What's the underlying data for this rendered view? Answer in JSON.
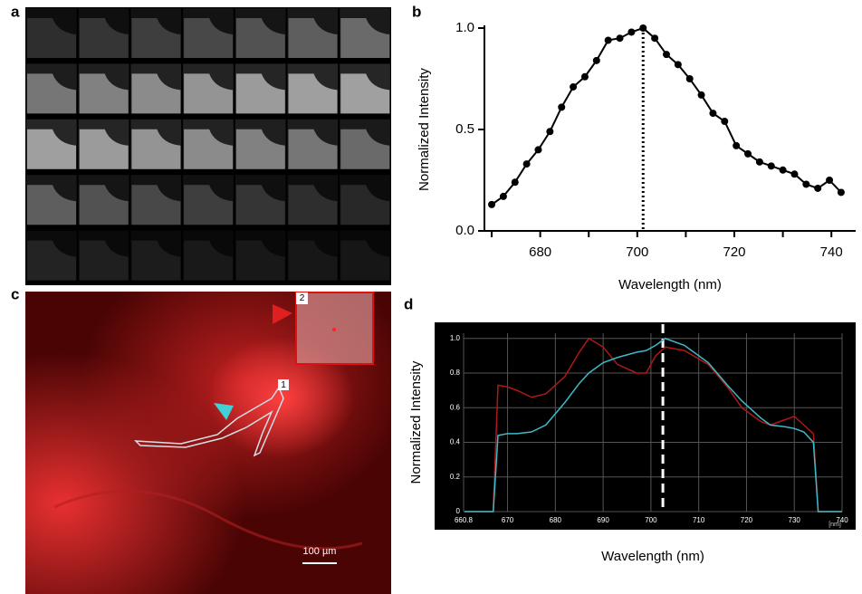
{
  "panel_labels": [
    "a",
    "b",
    "c",
    "d"
  ],
  "image_c": {
    "roi_labels": [
      "1",
      "2"
    ],
    "scale_bar": "100 µm"
  },
  "chart_data": [
    {
      "type": "line",
      "x_label": "Wavelength (nm)",
      "y_label": "Normalized Intensity",
      "x": [
        670,
        672.4,
        674.8,
        677.2,
        679.6,
        682,
        684.4,
        686.8,
        689.2,
        691.6,
        694,
        696.4,
        698.8,
        701.2,
        703.6,
        706,
        708.4,
        710.8,
        713.2,
        715.6,
        718,
        720.4,
        722.8,
        725.2,
        727.6,
        730,
        732.4,
        734.8,
        737.2,
        739.6,
        742
      ],
      "series": [
        {
          "color": "#000000",
          "values": [
            0.13,
            0.17,
            0.24,
            0.33,
            0.4,
            0.49,
            0.61,
            0.71,
            0.76,
            0.84,
            0.94,
            0.95,
            0.98,
            1.0,
            0.95,
            0.87,
            0.82,
            0.75,
            0.67,
            0.58,
            0.54,
            0.42,
            0.38,
            0.34,
            0.32,
            0.3,
            0.28,
            0.23,
            0.21,
            0.25,
            0.19
          ]
        }
      ],
      "xlim": [
        668.5,
        745
      ],
      "ylim": [
        0,
        1.0
      ],
      "xticks": [
        680,
        700,
        720,
        740
      ],
      "xminorticks": [
        670,
        690,
        710,
        730
      ],
      "yticks": [
        {
          "value": 0,
          "label": "0.0"
        },
        0.5,
        {
          "value": 1,
          "label": "1.0"
        }
      ],
      "peak_line_x": 701.2
    },
    {
      "type": "line",
      "x_label": "Wavelength (nm)",
      "y_label": "Normalized Intensity",
      "x_unit": "[nm]",
      "x": [
        661,
        667,
        668,
        670,
        672,
        675,
        678,
        682,
        685,
        687,
        690,
        693,
        697,
        699,
        701,
        703,
        707,
        712,
        716,
        719,
        723,
        725,
        728,
        730,
        732,
        734,
        735,
        740
      ],
      "series": [
        {
          "color": "#b01818",
          "values": [
            0,
            0,
            0.73,
            0.72,
            0.7,
            0.66,
            0.68,
            0.78,
            0.92,
            1.0,
            0.95,
            0.85,
            0.8,
            0.8,
            0.9,
            0.95,
            0.93,
            0.85,
            0.72,
            0.6,
            0.52,
            0.5,
            0.53,
            0.55,
            0.5,
            0.45,
            0,
            0
          ]
        },
        {
          "color": "#3fb8c8",
          "values": [
            0,
            0,
            0.44,
            0.45,
            0.45,
            0.46,
            0.5,
            0.63,
            0.74,
            0.8,
            0.86,
            0.89,
            0.92,
            0.93,
            0.96,
            1.0,
            0.96,
            0.86,
            0.73,
            0.64,
            0.54,
            0.5,
            0.49,
            0.48,
            0.46,
            0.4,
            0,
            0
          ]
        }
      ],
      "xlim": [
        660.8,
        740
      ],
      "ylim": [
        0,
        1.03
      ],
      "xticks": [
        660.8,
        670,
        680,
        690,
        700,
        710,
        720,
        730,
        740
      ],
      "yticks": [
        0,
        0.2,
        0.4,
        0.6,
        0.8,
        {
          "value": 1,
          "label": "1.0"
        }
      ],
      "grid": true,
      "background": "#000000",
      "peak_line_x": 702.5
    }
  ]
}
